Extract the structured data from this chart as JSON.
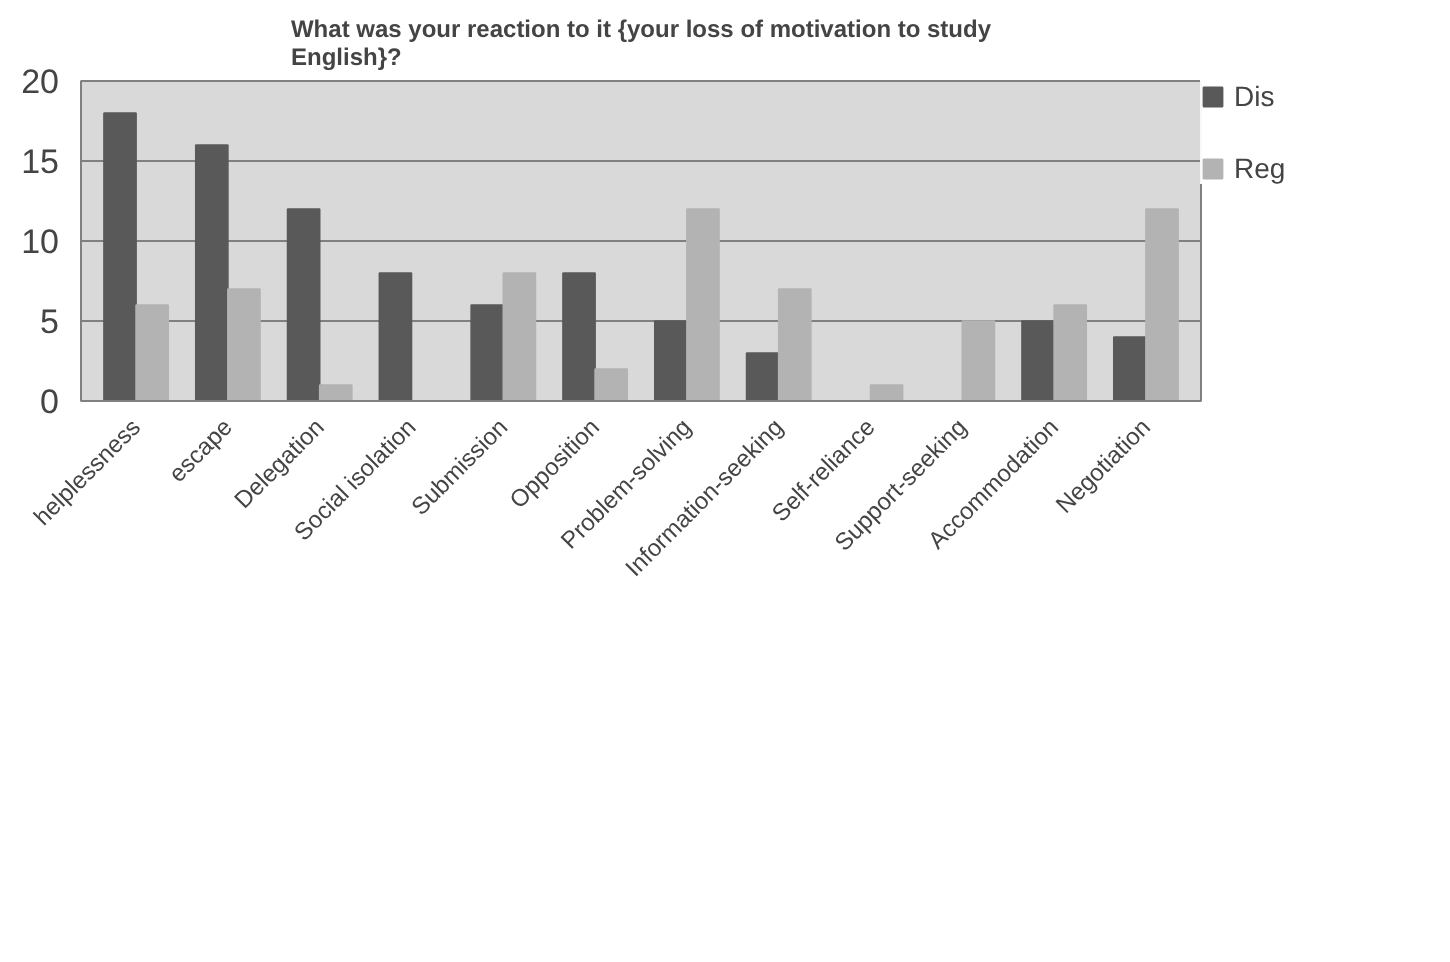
{
  "chart_data": {
    "type": "bar",
    "title": "What was your reaction to it {your loss of motivation to study English}?",
    "categories": [
      "helplessness",
      "escape",
      "Delegation",
      "Social isolation",
      "Submission",
      "Opposition",
      "Problem-solving",
      "Information-seeking",
      "Self-reliance",
      "Support-seeking",
      "Accommodation",
      "Negotiation"
    ],
    "series": [
      {
        "name": "Dis",
        "color": "#595959",
        "values": [
          18,
          16,
          12,
          8,
          6,
          8,
          5,
          3,
          0,
          0,
          5,
          4
        ]
      },
      {
        "name": "Reg",
        "color": "#b3b3b3",
        "values": [
          6,
          7,
          1,
          0,
          8,
          2,
          12,
          7,
          1,
          5,
          6,
          12
        ]
      }
    ],
    "ylim": [
      0,
      20
    ],
    "yticks": [
      0,
      5,
      10,
      15,
      20
    ],
    "grid": "y",
    "legend": "right"
  }
}
